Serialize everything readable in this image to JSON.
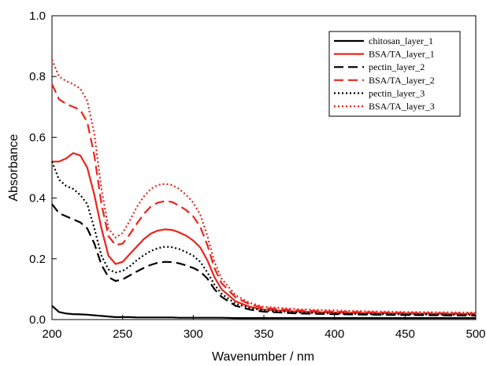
{
  "chart_data": {
    "type": "line",
    "title": "",
    "xlabel": "Wavenumber / nm",
    "ylabel": "Absorbance",
    "xlim": [
      200,
      500
    ],
    "ylim": [
      0,
      1.0
    ],
    "xticks": [
      200,
      250,
      300,
      350,
      400,
      450,
      500
    ],
    "xtick_labels": [
      "200",
      "250",
      "300",
      "350",
      "400",
      "450",
      "500"
    ],
    "yticks": [
      0,
      0.2,
      0.4,
      0.6,
      0.8,
      1.0
    ],
    "ytick_labels": [
      "0.0",
      "0.2",
      "0.4",
      "0.6",
      "0.8",
      "1.0"
    ],
    "grid": false,
    "legend_position": "top-right",
    "x": [
      200,
      205,
      210,
      215,
      220,
      225,
      230,
      235,
      240,
      245,
      250,
      255,
      260,
      265,
      270,
      275,
      280,
      285,
      290,
      295,
      300,
      305,
      310,
      315,
      320,
      330,
      340,
      350,
      375,
      400,
      425,
      450,
      475,
      500
    ],
    "series": [
      {
        "name": "chitosan_layer_1",
        "color": "#000000",
        "dash": "solid",
        "values": [
          0.045,
          0.025,
          0.02,
          0.018,
          0.017,
          0.016,
          0.014,
          0.012,
          0.01,
          0.008,
          0.008,
          0.008,
          0.007,
          0.007,
          0.007,
          0.007,
          0.007,
          0.007,
          0.006,
          0.006,
          0.006,
          0.006,
          0.006,
          0.006,
          0.006,
          0.005,
          0.005,
          0.005,
          0.005,
          0.005,
          0.005,
          0.005,
          0.005,
          0.005
        ]
      },
      {
        "name": "BSA/TA_layer_1",
        "color": "#e8251c",
        "dash": "solid",
        "values": [
          0.52,
          0.52,
          0.53,
          0.548,
          0.54,
          0.5,
          0.41,
          0.3,
          0.21,
          0.183,
          0.19,
          0.215,
          0.24,
          0.265,
          0.283,
          0.293,
          0.297,
          0.295,
          0.287,
          0.276,
          0.26,
          0.237,
          0.195,
          0.14,
          0.1,
          0.06,
          0.042,
          0.033,
          0.026,
          0.023,
          0.021,
          0.02,
          0.019,
          0.018
        ]
      },
      {
        "name": "pectin_layer_2",
        "color": "#000000",
        "dash": "dash",
        "values": [
          0.38,
          0.35,
          0.34,
          0.33,
          0.32,
          0.3,
          0.25,
          0.18,
          0.14,
          0.127,
          0.132,
          0.145,
          0.158,
          0.17,
          0.18,
          0.187,
          0.19,
          0.189,
          0.185,
          0.178,
          0.17,
          0.158,
          0.135,
          0.1,
          0.075,
          0.045,
          0.033,
          0.026,
          0.02,
          0.018,
          0.016,
          0.015,
          0.014,
          0.013
        ]
      },
      {
        "name": "BSA/TA_layer_2",
        "color": "#e8251c",
        "dash": "dash",
        "values": [
          0.775,
          0.725,
          0.71,
          0.7,
          0.69,
          0.65,
          0.54,
          0.38,
          0.275,
          0.245,
          0.25,
          0.28,
          0.315,
          0.348,
          0.372,
          0.385,
          0.39,
          0.387,
          0.375,
          0.36,
          0.34,
          0.305,
          0.245,
          0.17,
          0.12,
          0.073,
          0.05,
          0.038,
          0.03,
          0.026,
          0.024,
          0.022,
          0.021,
          0.02
        ]
      },
      {
        "name": "pectin_layer_3",
        "color": "#000000",
        "dash": "dot",
        "values": [
          0.52,
          0.46,
          0.44,
          0.43,
          0.41,
          0.38,
          0.3,
          0.21,
          0.165,
          0.155,
          0.16,
          0.175,
          0.195,
          0.212,
          0.226,
          0.235,
          0.24,
          0.238,
          0.232,
          0.222,
          0.21,
          0.19,
          0.155,
          0.115,
          0.085,
          0.052,
          0.038,
          0.03,
          0.023,
          0.02,
          0.018,
          0.017,
          0.016,
          0.015
        ]
      },
      {
        "name": "BSA/TA_layer_3",
        "color": "#e8251c",
        "dash": "dot",
        "values": [
          0.855,
          0.8,
          0.785,
          0.775,
          0.76,
          0.72,
          0.61,
          0.43,
          0.3,
          0.27,
          0.285,
          0.325,
          0.37,
          0.405,
          0.43,
          0.443,
          0.447,
          0.443,
          0.43,
          0.41,
          0.385,
          0.345,
          0.275,
          0.19,
          0.135,
          0.08,
          0.055,
          0.042,
          0.034,
          0.03,
          0.027,
          0.025,
          0.024,
          0.023
        ]
      }
    ]
  }
}
